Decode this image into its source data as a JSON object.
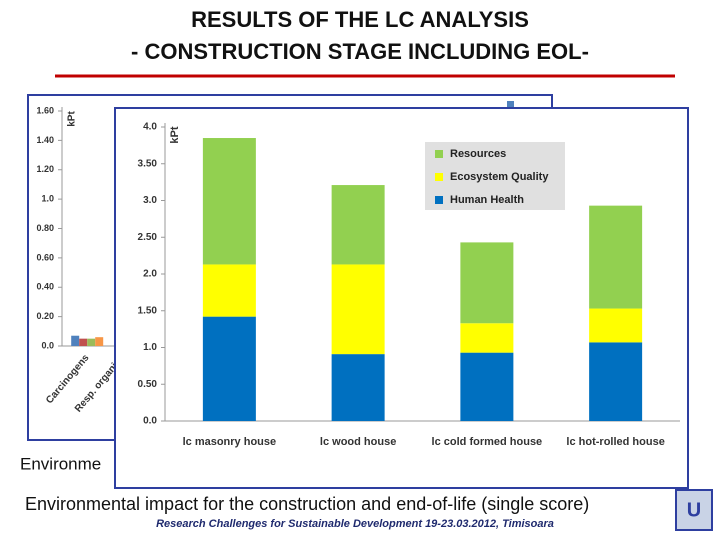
{
  "slide": {
    "title_lines": [
      "RESULTS OF THE LC ANALYSIS",
      "- CONSTRUCTION STAGE INCLUDING EOL-"
    ],
    "caption_behind": "Environme",
    "caption": "Environmental impact for the construction and end-of-life (single score)",
    "footer": "Research Challenges for Sustainable Development 19-23.03.2012, Timisoara"
  },
  "chart_data": [
    {
      "type": "bar",
      "y_label": "kPt",
      "categories": [
        "Carcinogens",
        "Resp. organics"
      ],
      "series": [
        {
          "color": "#4f81bd",
          "values": [
            0.07,
            null
          ]
        },
        {
          "color": "#c0504d",
          "values": [
            0.05,
            null
          ]
        },
        {
          "color": "#9bbb59",
          "values": [
            0.05,
            null
          ]
        },
        {
          "color": "#f79646",
          "values": [
            0.06,
            null
          ]
        }
      ],
      "ylim": [
        0,
        1.6
      ],
      "yticks": [
        {
          "value": 0,
          "label": "0.0"
        },
        {
          "value": 0.2,
          "label": "0.20"
        },
        {
          "value": 0.4,
          "label": "0.40"
        },
        {
          "value": 0.6,
          "label": "0.60"
        },
        {
          "value": 0.8,
          "label": "0.80"
        },
        {
          "value": 1.0,
          "label": "1.0"
        },
        {
          "value": 1.2,
          "label": "1.20"
        },
        {
          "value": 1.4,
          "label": "1.40"
        },
        {
          "value": 1.6,
          "label": "1.60"
        }
      ]
    },
    {
      "type": "stacked_bar",
      "y_label": "kPt",
      "categories": [
        "lc masonry house",
        "lc wood house",
        "lc cold formed house",
        "lc hot-rolled house"
      ],
      "series": [
        {
          "name": "Human Health",
          "color": "#0070c0",
          "values": [
            1.42,
            0.91,
            0.93,
            1.07
          ]
        },
        {
          "name": "Ecosystem Quality",
          "color": "#ffff00",
          "values": [
            0.71,
            1.22,
            0.4,
            0.46
          ]
        },
        {
          "name": "Resources",
          "color": "#92d050",
          "values": [
            1.72,
            1.08,
            1.1,
            1.4
          ]
        }
      ],
      "ylim": [
        0,
        4
      ],
      "yticks": [
        {
          "value": 0,
          "label": "0.0"
        },
        {
          "value": 0.5,
          "label": "0.50"
        },
        {
          "value": 1.0,
          "label": "1.0"
        },
        {
          "value": 1.5,
          "label": "1.50"
        },
        {
          "value": 2.0,
          "label": "2.0"
        },
        {
          "value": 2.5,
          "label": "2.50"
        },
        {
          "value": 3.0,
          "label": "3.0"
        },
        {
          "value": 3.5,
          "label": "3.50"
        },
        {
          "value": 4.0,
          "label": "4.0"
        }
      ],
      "legend": "top-right"
    }
  ]
}
